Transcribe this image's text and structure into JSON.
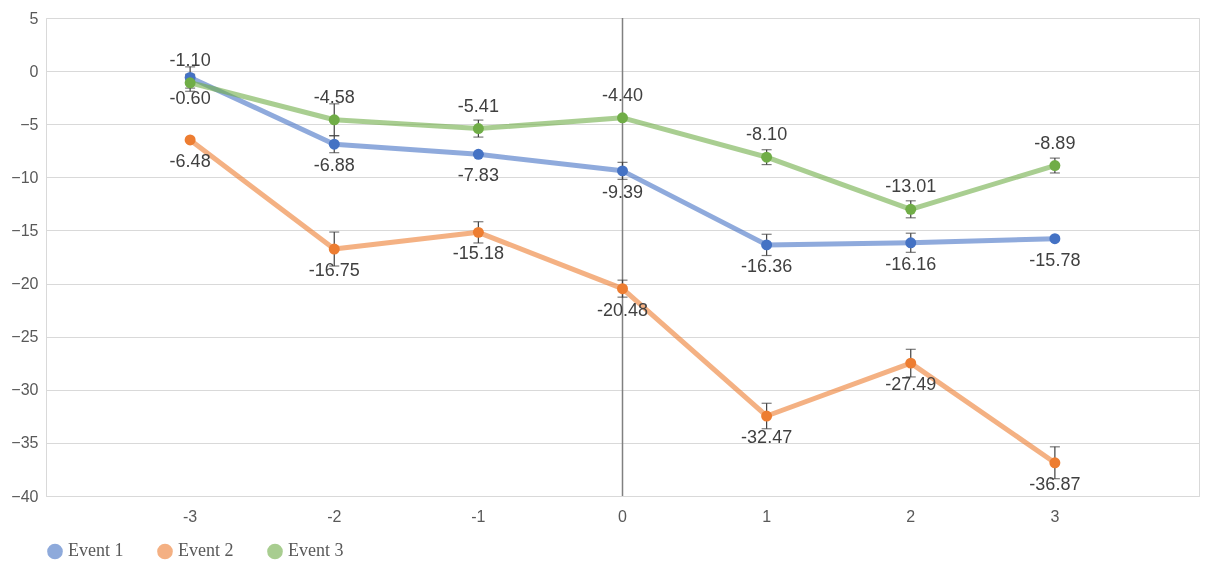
{
  "chart_data": {
    "type": "line",
    "categories": [
      "-3",
      "-2",
      "-1",
      "0",
      "1",
      "2",
      "3"
    ],
    "series": [
      {
        "name": "Event 1",
        "color": "#4472c4",
        "values": [
          -0.6,
          -6.88,
          -7.83,
          -9.39,
          -16.36,
          -16.16,
          -15.78
        ],
        "errors": [
          1.0,
          0.8,
          null,
          0.8,
          1.0,
          0.9,
          null
        ],
        "value_labels": [
          "-0.60",
          "-6.88",
          "-7.83",
          "-9.39",
          "-16.36",
          "-16.16",
          "-15.78"
        ]
      },
      {
        "name": "Event 2",
        "color": "#ed7d31",
        "values": [
          -6.48,
          -16.75,
          -15.18,
          -20.48,
          -32.47,
          -27.49,
          -36.87
        ],
        "errors": [
          null,
          1.6,
          1.0,
          0.8,
          1.2,
          1.3,
          1.5
        ],
        "value_labels": [
          "-6.48",
          "-16.75",
          "-15.18",
          "-20.48",
          "-32.47",
          "-27.49",
          "-36.87"
        ]
      },
      {
        "name": "Event 3",
        "color": "#70ad47",
        "values": [
          -1.1,
          -4.58,
          -5.41,
          -4.4,
          -8.1,
          -13.01,
          -8.89
        ],
        "errors": [
          0.8,
          1.5,
          0.8,
          null,
          0.7,
          0.8,
          0.7
        ],
        "value_labels": [
          "-1.10",
          "-4.58",
          "-5.41",
          "-4.40",
          "-8.10",
          "-13.01",
          "-8.89"
        ]
      }
    ],
    "ylim": [
      -40,
      5
    ],
    "yticks": [
      -40,
      -35,
      -30,
      -25,
      -20,
      -15,
      -10,
      -5,
      0,
      5
    ],
    "ref_lines": [
      {
        "axis": "x",
        "value": "0",
        "color": "#808080"
      }
    ],
    "grid": "y",
    "legend": "bottom",
    "marker": "circle",
    "line_style": "solid"
  }
}
